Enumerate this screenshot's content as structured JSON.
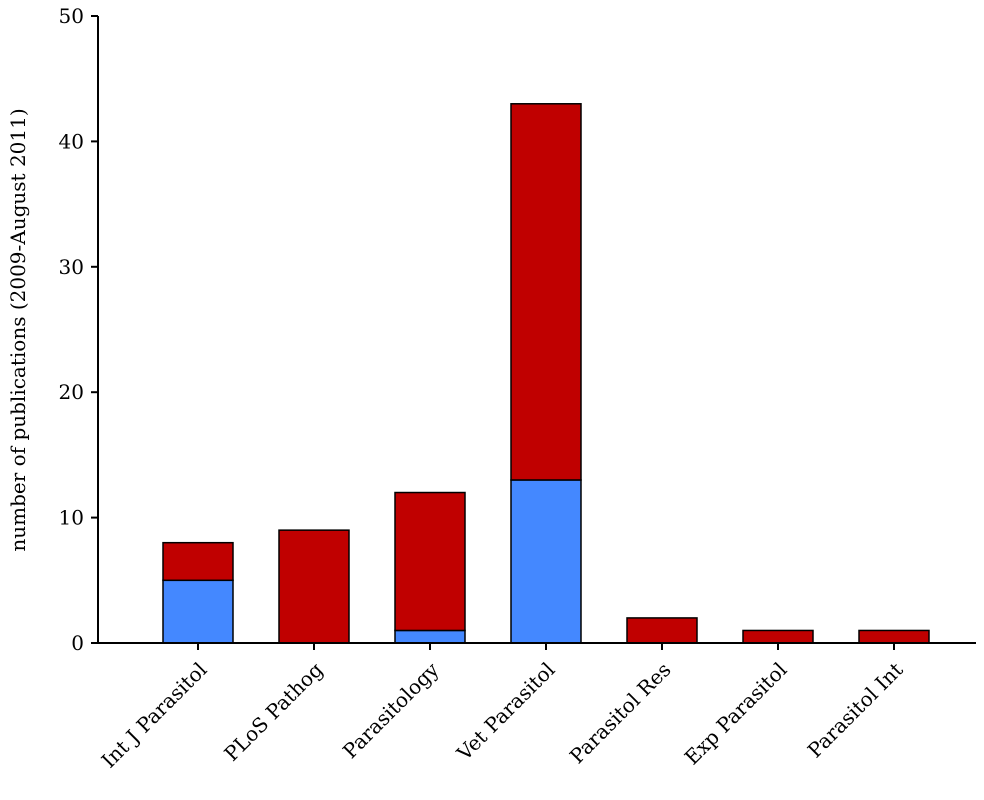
{
  "chart_data": {
    "type": "bar",
    "stacked": true,
    "title": "",
    "xlabel": "",
    "ylabel": "number of publications (2009-August 2011)",
    "ylim": [
      0,
      50
    ],
    "yticks": [
      "0",
      "10",
      "20",
      "30",
      "40",
      "50"
    ],
    "grid": false,
    "legend": "none",
    "categories": [
      "Int J Parasitol",
      "PLoS Pathog",
      "Parasitology",
      "Vet Parasitol",
      "Parasitol Res",
      "Exp Parasitol",
      "Parasitol Int"
    ],
    "series": [
      {
        "color": "#4488ff",
        "values": [
          5,
          0,
          1,
          13,
          0,
          0,
          0
        ]
      },
      {
        "color": "#c00000",
        "values": [
          3,
          9,
          11,
          30,
          2,
          1,
          1
        ]
      }
    ]
  }
}
